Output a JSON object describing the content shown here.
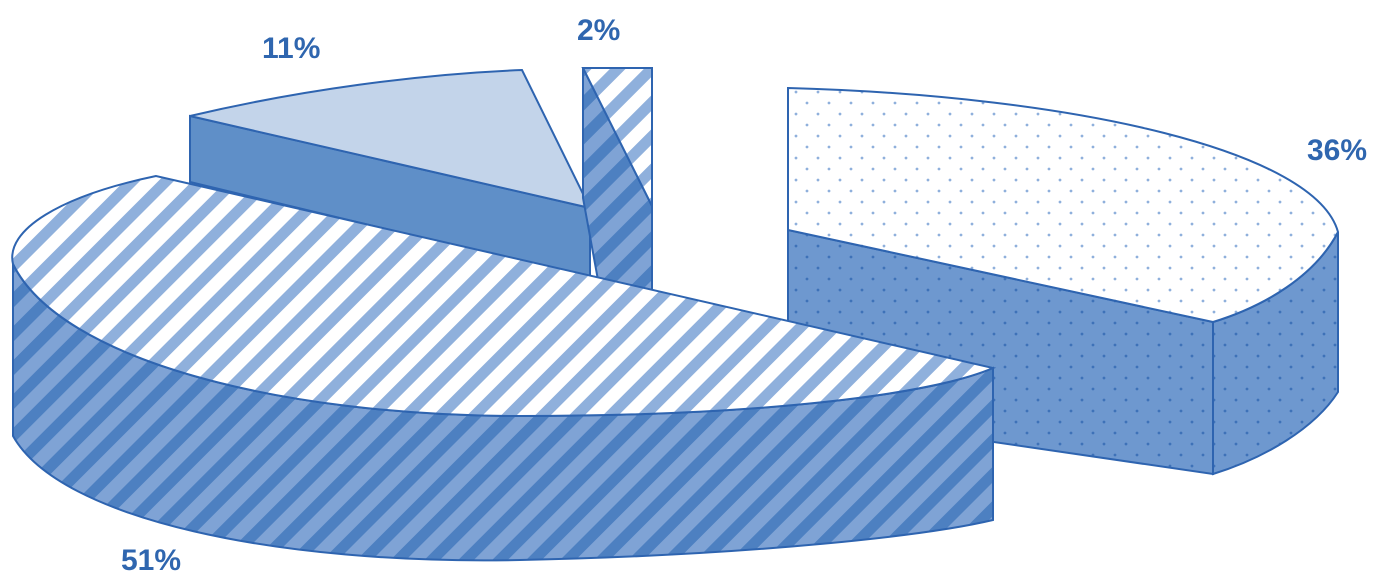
{
  "chart_data": {
    "type": "pie",
    "style": "3d-exploded",
    "slices": [
      {
        "value": 51,
        "label": "51%",
        "fill": "diagonal-stripes"
      },
      {
        "value": 11,
        "label": "11%",
        "fill": "solid-light"
      },
      {
        "value": 2,
        "label": "2%",
        "fill": "diagonal-stripes"
      },
      {
        "value": 36,
        "label": "36%",
        "fill": "dots"
      }
    ],
    "legend": "none"
  },
  "colors": {
    "outline": "#2E64B0",
    "top_light": "#C3D4EA",
    "side": "#5F8FC8",
    "side_dark": "#4D80C1",
    "stripe": "#8FB0DC",
    "label": "#2F66AF",
    "background": "#FFFFFF"
  }
}
